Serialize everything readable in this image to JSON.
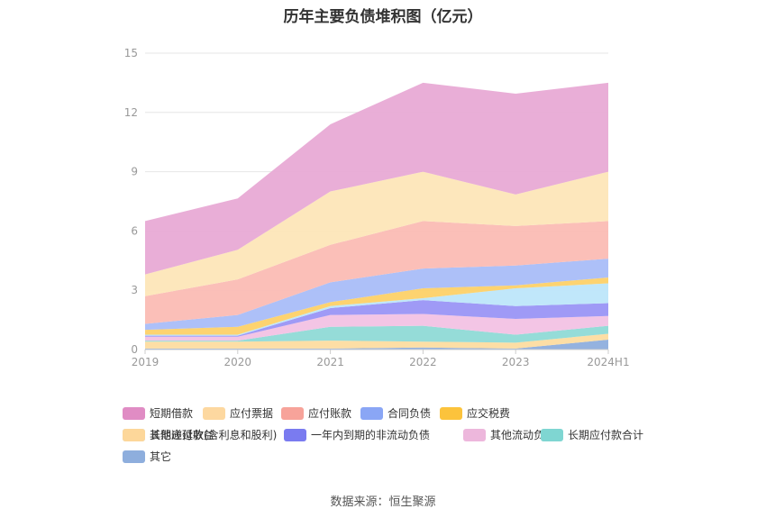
{
  "chart_data": {
    "type": "area",
    "stacked": true,
    "title": "历年主要负债堆积图（亿元）",
    "categories": [
      "2019",
      "2020",
      "2021",
      "2022",
      "2023",
      "2024H1"
    ],
    "ylim": [
      0,
      15
    ],
    "yticks": [
      "0",
      "3",
      "6",
      "9",
      "12",
      "15"
    ],
    "grid": true,
    "legend_position": "bottom",
    "series": [
      {
        "name": "其它",
        "color": "#8eaedd",
        "values": [
          0.05,
          0.05,
          0.05,
          0.1,
          0.05,
          0.5
        ]
      },
      {
        "name": "长期递延收益",
        "color": "#fddca0",
        "values": [
          0.35,
          0.35,
          0.4,
          0.3,
          0.3,
          0.3
        ]
      },
      {
        "name": "长期应付款合计",
        "color": "#8fdad6",
        "values": [
          0.05,
          0.05,
          0.7,
          0.8,
          0.4,
          0.4
        ]
      },
      {
        "name": "其他流动负债",
        "color": "#f2c2e4",
        "values": [
          0.2,
          0.2,
          0.6,
          0.6,
          0.8,
          0.5
        ]
      },
      {
        "name": "一年内到期的非流动负债",
        "color": "#9a95f5",
        "values": [
          0.05,
          0.05,
          0.35,
          0.7,
          0.65,
          0.65
        ]
      },
      {
        "name": "其他应付款(含利息和股利)",
        "color": "#bde6fa",
        "values": [
          0.05,
          0.05,
          0.1,
          0.1,
          0.9,
          1.0
        ]
      },
      {
        "name": "应交税费",
        "color": "#fdd168",
        "values": [
          0.25,
          0.4,
          0.2,
          0.5,
          0.15,
          0.3
        ]
      },
      {
        "name": "合同负债",
        "color": "#a9bdf8",
        "values": [
          0.3,
          0.6,
          1.0,
          1.0,
          1.0,
          0.95
        ]
      },
      {
        "name": "应付账款",
        "color": "#fbbcb4",
        "values": [
          1.4,
          1.8,
          1.9,
          2.4,
          2.0,
          1.9
        ]
      },
      {
        "name": "应付票据",
        "color": "#fde6b8",
        "values": [
          1.1,
          1.5,
          2.7,
          2.5,
          1.6,
          2.5
        ]
      },
      {
        "name": "短期借款",
        "color": "#e8aad5",
        "values": [
          2.7,
          2.6,
          3.4,
          4.5,
          5.1,
          4.5
        ]
      }
    ],
    "legend_order": [
      "短期借款",
      "应付票据",
      "应付账款",
      "合同负债",
      "应交税费",
      "其他应付款(含利息和股利)",
      "一年内到期的非流动负债",
      "其他流动负债",
      "长期应付款合计",
      "长期递延收益",
      "其它"
    ],
    "legend_colors": {
      "短期借款": "#e08cc4",
      "应付票据": "#fdd8a0",
      "应付账款": "#f7a39a",
      "合同负债": "#8aa6f5",
      "应交税费": "#fcc33c",
      "其他应付款(含利息和股利)": "#a8ddf8",
      "一年内到期的非流动负债": "#7a7bf0",
      "其他流动负债": "#edb7dc",
      "长期应付款合计": "#7fd6d2",
      "长期递延收益": "#fdd79a",
      "其它": "#8eaedd"
    }
  },
  "footer": {
    "source": "数据来源：恒生聚源"
  }
}
